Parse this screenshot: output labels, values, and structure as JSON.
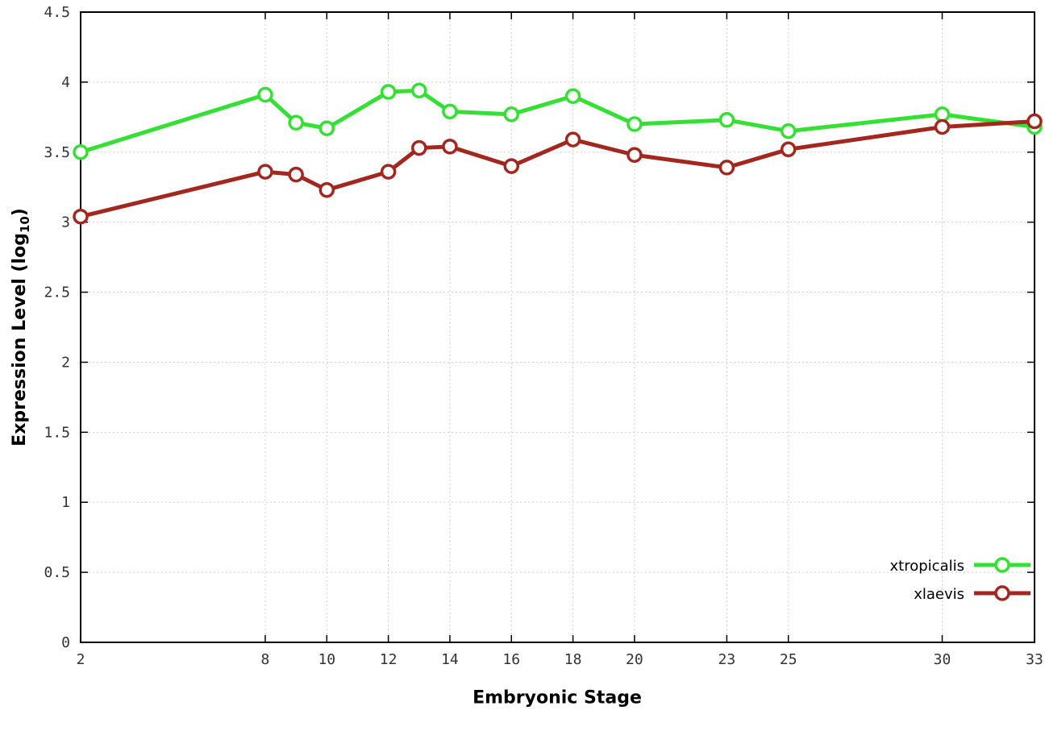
{
  "labels": {
    "x": "Embryonic Stage",
    "y_prefix": "Expression Level (log",
    "y_sub": "10",
    "y_suffix": ")"
  },
  "chart_data": {
    "type": "line",
    "title": "",
    "xlabel": "Embryonic Stage",
    "ylabel": "Expression Level (log10)",
    "xlim": [
      2,
      33
    ],
    "ylim": [
      0,
      4.5
    ],
    "grid": true,
    "legend_position": "bottom-right",
    "x": [
      2,
      8,
      9,
      10,
      12,
      13,
      14,
      16,
      18,
      20,
      23,
      25,
      30,
      33
    ],
    "x_ticks": [
      {
        "v": 2,
        "label": "2"
      },
      {
        "v": 8,
        "label": "8"
      },
      {
        "v": 10,
        "label": "10"
      },
      {
        "v": 12,
        "label": "12"
      },
      {
        "v": 14,
        "label": "14"
      },
      {
        "v": 16,
        "label": "16"
      },
      {
        "v": 18,
        "label": "18"
      },
      {
        "v": 20,
        "label": "20"
      },
      {
        "v": 23,
        "label": "23"
      },
      {
        "v": 25,
        "label": "25"
      },
      {
        "v": 30,
        "label": "30"
      },
      {
        "v": 33,
        "label": "33"
      }
    ],
    "y_ticks": [
      {
        "v": 0,
        "label": "0"
      },
      {
        "v": 0.5,
        "label": "0.5"
      },
      {
        "v": 1,
        "label": "1"
      },
      {
        "v": 1.5,
        "label": "1.5"
      },
      {
        "v": 2,
        "label": "2"
      },
      {
        "v": 2.5,
        "label": "2.5"
      },
      {
        "v": 3,
        "label": "3"
      },
      {
        "v": 3.5,
        "label": "3.5"
      },
      {
        "v": 4,
        "label": "4"
      },
      {
        "v": 4.5,
        "label": "4.5"
      }
    ],
    "series": [
      {
        "name": "xtropicalis",
        "color": "#33e033",
        "values": [
          3.5,
          3.91,
          3.71,
          3.67,
          3.93,
          3.94,
          3.79,
          3.77,
          3.9,
          3.7,
          3.73,
          3.65,
          3.77,
          3.68
        ]
      },
      {
        "name": "xlaevis",
        "color": "#a2271f",
        "values": [
          3.04,
          3.36,
          3.34,
          3.23,
          3.36,
          3.53,
          3.54,
          3.4,
          3.59,
          3.48,
          3.39,
          3.52,
          3.68,
          3.72
        ]
      }
    ]
  }
}
